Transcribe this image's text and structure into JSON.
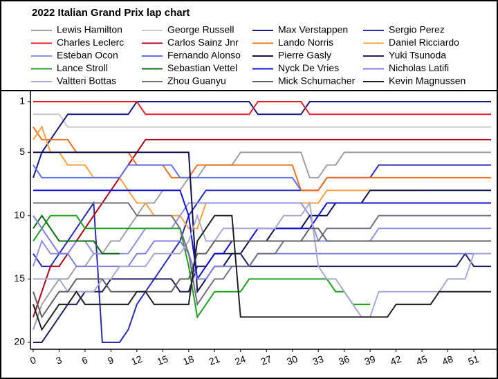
{
  "chart_data": {
    "type": "line",
    "title": "2022 Italian Grand Prix lap chart",
    "legend": "top",
    "invert_y": true,
    "x": [
      0,
      1,
      2,
      3,
      4,
      5,
      6,
      7,
      8,
      9,
      10,
      11,
      12,
      13,
      14,
      15,
      16,
      17,
      18,
      19,
      20,
      21,
      22,
      23,
      24,
      25,
      26,
      27,
      28,
      29,
      30,
      31,
      32,
      33,
      34,
      35,
      36,
      37,
      38,
      39,
      40,
      41,
      42,
      43,
      44,
      45,
      46,
      47,
      48,
      49,
      50,
      51,
      52,
      53
    ],
    "xlim": [
      0,
      53
    ],
    "xticks": [
      0,
      3,
      6,
      9,
      12,
      15,
      18,
      21,
      24,
      27,
      30,
      33,
      36,
      39,
      42,
      45,
      48,
      51
    ],
    "ylim": [
      1,
      20
    ],
    "yticks": [
      1,
      5,
      10,
      15,
      20
    ],
    "series": [
      {
        "name": "Lewis Hamilton",
        "color": "#a0a0a0",
        "values": [
          19,
          17,
          16,
          15,
          15,
          14,
          14,
          13,
          13,
          12,
          12,
          11,
          10,
          9,
          9,
          8,
          8,
          8,
          7,
          7,
          6,
          6,
          6,
          6,
          5,
          5,
          5,
          5,
          5,
          5,
          5,
          5,
          7,
          7,
          6,
          6,
          5,
          5,
          5,
          5,
          5,
          5,
          5,
          5,
          5,
          5,
          5,
          5,
          5,
          5,
          5,
          5,
          5,
          5
        ]
      },
      {
        "name": "George Russell",
        "color": "#c8c8c8",
        "values": [
          2,
          2,
          2,
          2,
          3,
          3,
          3,
          3,
          3,
          3,
          3,
          3,
          3,
          3,
          3,
          3,
          3,
          3,
          3,
          3,
          3,
          3,
          3,
          3,
          3,
          3,
          3,
          3,
          3,
          3,
          3,
          3,
          3,
          3,
          3,
          3,
          3,
          3,
          3,
          3,
          3,
          3,
          3,
          3,
          3,
          3,
          3,
          3,
          3,
          3,
          3,
          3,
          3,
          3
        ]
      },
      {
        "name": "Max Verstappen",
        "color": "#1a1a80",
        "values": [
          7,
          5,
          4,
          3,
          2,
          2,
          2,
          2,
          2,
          2,
          2,
          2,
          1,
          1,
          1,
          1,
          1,
          1,
          1,
          1,
          1,
          1,
          1,
          1,
          1,
          1,
          2,
          2,
          2,
          2,
          2,
          2,
          1,
          1,
          1,
          1,
          1,
          1,
          1,
          1,
          1,
          1,
          1,
          1,
          1,
          1,
          1,
          1,
          1,
          1,
          1,
          1,
          1,
          1
        ]
      },
      {
        "name": "Sergio Perez",
        "color": "#2a2ab8",
        "values": [
          13,
          14,
          14,
          13,
          12,
          11,
          10,
          9,
          20,
          20,
          20,
          19,
          17,
          16,
          15,
          14,
          13,
          12,
          10,
          9,
          8,
          8,
          8,
          8,
          8,
          8,
          8,
          8,
          8,
          8,
          8,
          8,
          8,
          8,
          7,
          7,
          7,
          7,
          7,
          7,
          6,
          6,
          6,
          6,
          6,
          6,
          6,
          6,
          6,
          6,
          6,
          6,
          6,
          6
        ]
      },
      {
        "name": "Charles Leclerc",
        "color": "#e8202a",
        "values": [
          1,
          1,
          1,
          1,
          1,
          1,
          1,
          1,
          1,
          1,
          1,
          1,
          1,
          2,
          2,
          2,
          2,
          2,
          2,
          2,
          2,
          2,
          2,
          2,
          2,
          2,
          1,
          1,
          1,
          1,
          1,
          1,
          2,
          2,
          2,
          2,
          2,
          2,
          2,
          2,
          2,
          2,
          2,
          2,
          2,
          2,
          2,
          2,
          2,
          2,
          2,
          2,
          2,
          2
        ]
      },
      {
        "name": "Carlos Sainz Jnr",
        "color": "#b00018",
        "values": [
          18,
          16,
          14,
          14,
          13,
          12,
          11,
          10,
          9,
          8,
          7,
          6,
          5,
          4,
          4,
          4,
          4,
          4,
          4,
          4,
          4,
          4,
          4,
          4,
          4,
          4,
          4,
          4,
          4,
          4,
          4,
          4,
          4,
          4,
          4,
          4,
          4,
          4,
          4,
          4,
          4,
          4,
          4,
          4,
          4,
          4,
          4,
          4,
          4,
          4,
          4,
          4,
          4,
          4
        ]
      },
      {
        "name": "Lando Norris",
        "color": "#f07020",
        "values": [
          3,
          4,
          4,
          4,
          4,
          5,
          5,
          5,
          5,
          5,
          5,
          5,
          6,
          6,
          6,
          6,
          7,
          7,
          7,
          6,
          6,
          6,
          6,
          6,
          6,
          6,
          6,
          6,
          6,
          6,
          6,
          8,
          8,
          8,
          7,
          7,
          7,
          7,
          7,
          7,
          7,
          7,
          7,
          7,
          7,
          7,
          7,
          7,
          7,
          7,
          7,
          7,
          7,
          7
        ]
      },
      {
        "name": "Daniel Ricciardo",
        "color": "#ffa040",
        "values": [
          4,
          3,
          5,
          5,
          6,
          6,
          6,
          7,
          7,
          7,
          7,
          8,
          9,
          9,
          10,
          10,
          10,
          10,
          11,
          11,
          9,
          9,
          9,
          9,
          9,
          9,
          9,
          9,
          9,
          9,
          9,
          9,
          9,
          9,
          8,
          8,
          8,
          8,
          8,
          8,
          8,
          8,
          8,
          8,
          8,
          8,
          null,
          null,
          null,
          null,
          null,
          null,
          null,
          null
        ]
      },
      {
        "name": "Esteban Ocon",
        "color": "#9090e0",
        "values": [
          14,
          12,
          13,
          13,
          13,
          12,
          12,
          13,
          13,
          13,
          13,
          13,
          12,
          11,
          11,
          11,
          11,
          10,
          9,
          9,
          9,
          9,
          9,
          9,
          9,
          9,
          9,
          9,
          9,
          9,
          9,
          9,
          10,
          12,
          12,
          12,
          12,
          12,
          12,
          12,
          11,
          11,
          11,
          11,
          11,
          11,
          11,
          11,
          11,
          11,
          11,
          11,
          11,
          11
        ]
      },
      {
        "name": "Fernando Alonso",
        "color": "#6070e8",
        "values": [
          6,
          7,
          7,
          7,
          7,
          7,
          7,
          7,
          7,
          7,
          7,
          6,
          6,
          6,
          6,
          6,
          6,
          7,
          7,
          7,
          7,
          7,
          7,
          7,
          7,
          7,
          7,
          7,
          7,
          7,
          7,
          8,
          null,
          null,
          null,
          null,
          null,
          null,
          null,
          null,
          null,
          null,
          null,
          null,
          null,
          null,
          null,
          null,
          null,
          null,
          null,
          null,
          null,
          null
        ]
      },
      {
        "name": "Pierre Gasly",
        "color": "#101050",
        "values": [
          5,
          5,
          5,
          5,
          5,
          5,
          5,
          5,
          5,
          5,
          5,
          5,
          5,
          5,
          5,
          5,
          5,
          5,
          5,
          16,
          15,
          14,
          14,
          13,
          13,
          12,
          12,
          12,
          11,
          11,
          11,
          11,
          10,
          10,
          10,
          9,
          9,
          9,
          9,
          8,
          8,
          8,
          8,
          8,
          8,
          8,
          8,
          8,
          8,
          8,
          8,
          8,
          8,
          8
        ]
      },
      {
        "name": "Yuki Tsunoda",
        "color": "#202060",
        "values": [
          20,
          20,
          19,
          18,
          17,
          17,
          16,
          16,
          16,
          15,
          15,
          15,
          15,
          15,
          15,
          15,
          15,
          16,
          16,
          14,
          14,
          13,
          13,
          13,
          13,
          14,
          14,
          14,
          14,
          14,
          14,
          14,
          14,
          14,
          14,
          14,
          14,
          14,
          14,
          14,
          14,
          14,
          14,
          14,
          14,
          14,
          14,
          14,
          14,
          14,
          13,
          14,
          14,
          14
        ]
      },
      {
        "name": "Lance Stroll",
        "color": "#20a020",
        "values": [
          12,
          11,
          10,
          10,
          10,
          10,
          11,
          11,
          11,
          11,
          11,
          11,
          11,
          11,
          11,
          11,
          11,
          11,
          14,
          18,
          17,
          16,
          16,
          16,
          16,
          15,
          15,
          15,
          15,
          15,
          15,
          15,
          15,
          15,
          15,
          16,
          16,
          17,
          17,
          17,
          null,
          null,
          null,
          null,
          null,
          null,
          null,
          null,
          null,
          null,
          null,
          null,
          null,
          null
        ]
      },
      {
        "name": "Sebastian Vettel",
        "color": "#0a6a10",
        "values": [
          11,
          10,
          11,
          12,
          12,
          12,
          12,
          12,
          13,
          13,
          13,
          null,
          null,
          null,
          null,
          null,
          null,
          null,
          null,
          null,
          null,
          null,
          null,
          null,
          null,
          null,
          null,
          null,
          null,
          null,
          null,
          null,
          null,
          null,
          null,
          null,
          null,
          null,
          null,
          null,
          null,
          null,
          null,
          null,
          null,
          null,
          null,
          null,
          null,
          null,
          null,
          null,
          null,
          null
        ]
      },
      {
        "name": "Nyck De Vries",
        "color": "#1010d0",
        "values": [
          8,
          8,
          8,
          8,
          8,
          8,
          8,
          8,
          8,
          8,
          8,
          8,
          8,
          8,
          8,
          8,
          8,
          8,
          10,
          15,
          14,
          13,
          13,
          12,
          12,
          12,
          11,
          11,
          11,
          11,
          11,
          11,
          11,
          10,
          9,
          9,
          9,
          9,
          9,
          9,
          9,
          9,
          9,
          9,
          9,
          9,
          9,
          9,
          9,
          9,
          9,
          9,
          9,
          9
        ]
      },
      {
        "name": "Nicholas Latifi",
        "color": "#8080e0",
        "values": [
          10,
          11,
          12,
          13,
          13,
          14,
          14,
          14,
          14,
          14,
          14,
          14,
          13,
          13,
          12,
          12,
          12,
          12,
          13,
          15,
          15,
          14,
          14,
          14,
          14,
          14,
          13,
          13,
          13,
          13,
          13,
          13,
          13,
          13,
          13,
          13,
          13,
          13,
          13,
          13,
          13,
          13,
          13,
          13,
          13,
          13,
          13,
          13,
          13,
          13,
          13,
          13,
          13,
          13
        ]
      },
      {
        "name": "Valtteri Bottas",
        "color": "#a8a8d0",
        "values": [
          15,
          15,
          15,
          15,
          16,
          16,
          16,
          16,
          15,
          15,
          14,
          14,
          14,
          14,
          13,
          13,
          13,
          13,
          12,
          10,
          12,
          12,
          11,
          11,
          11,
          11,
          11,
          11,
          11,
          10,
          10,
          10,
          9,
          14,
          15,
          15,
          16,
          17,
          18,
          18,
          16,
          16,
          16,
          16,
          16,
          16,
          16,
          16,
          15,
          15,
          15,
          13,
          13,
          13
        ]
      },
      {
        "name": "Zhou Guanyu",
        "color": "#707080",
        "values": [
          9,
          9,
          9,
          9,
          9,
          9,
          9,
          9,
          9,
          9,
          9,
          9,
          10,
          10,
          10,
          10,
          10,
          11,
          13,
          17,
          16,
          15,
          15,
          14,
          14,
          14,
          13,
          13,
          13,
          12,
          12,
          12,
          12,
          12,
          11,
          11,
          11,
          11,
          11,
          11,
          10,
          10,
          10,
          10,
          10,
          10,
          10,
          10,
          10,
          10,
          10,
          10,
          10,
          10
        ]
      },
      {
        "name": "Mick Schumacher",
        "color": "#606060",
        "values": [
          16,
          18,
          17,
          16,
          16,
          15,
          15,
          15,
          15,
          16,
          16,
          16,
          16,
          16,
          16,
          16,
          16,
          15,
          15,
          13,
          13,
          12,
          12,
          12,
          12,
          12,
          12,
          12,
          12,
          12,
          12,
          12,
          11,
          11,
          12,
          12,
          12,
          12,
          12,
          12,
          12,
          12,
          12,
          12,
          12,
          12,
          12,
          12,
          12,
          12,
          12,
          12,
          12,
          12
        ]
      },
      {
        "name": "Kevin Magnussen",
        "color": "#202020",
        "values": [
          17,
          19,
          18,
          17,
          17,
          16,
          17,
          17,
          17,
          17,
          17,
          17,
          16,
          16,
          17,
          17,
          17,
          17,
          17,
          12,
          11,
          10,
          10,
          10,
          18,
          18,
          18,
          18,
          18,
          18,
          18,
          18,
          18,
          18,
          18,
          18,
          18,
          18,
          18,
          18,
          18,
          18,
          17,
          17,
          17,
          17,
          17,
          16,
          16,
          16,
          16,
          16,
          16,
          16
        ]
      }
    ]
  }
}
